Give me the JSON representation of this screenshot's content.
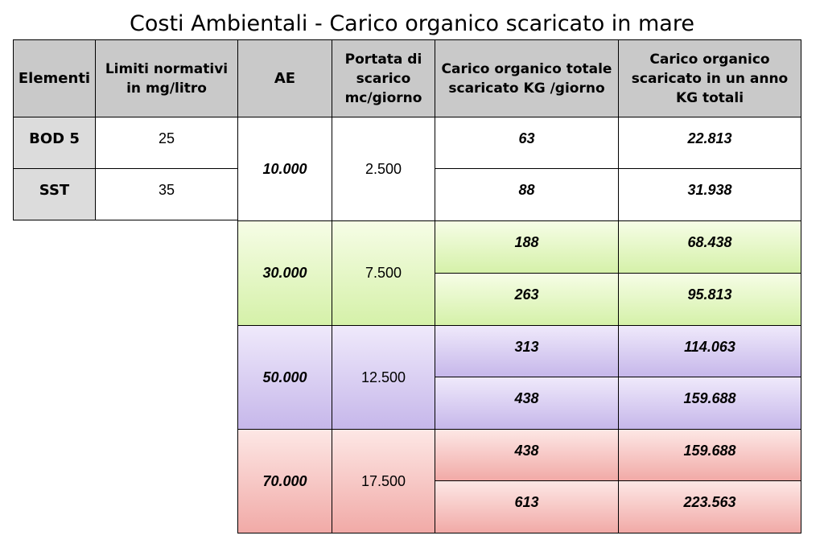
{
  "title": "Costi Ambientali - Carico organico scaricato in mare",
  "headers": {
    "elementi": "Elementi",
    "limiti": "Limiti normativi in mg/litro",
    "ae": "AE",
    "portata": "Portata di scarico mc/giorno",
    "carico_giorno": "Carico organico totale scaricato KG /giorno",
    "carico_anno": "Carico organico scaricato in un anno KG totali"
  },
  "elements": [
    {
      "name": "BOD 5",
      "limit": "25"
    },
    {
      "name": "SST",
      "limit": "35"
    }
  ],
  "groups": [
    {
      "ae": "10.000",
      "portata": "2.500",
      "rows": [
        {
          "kg_day": "63",
          "kg_year": "22.813"
        },
        {
          "kg_day": "88",
          "kg_year": "31.938"
        }
      ]
    },
    {
      "ae": "30.000",
      "portata": "7.500",
      "rows": [
        {
          "kg_day": "188",
          "kg_year": "68.438"
        },
        {
          "kg_day": "263",
          "kg_year": "95.813"
        }
      ]
    },
    {
      "ae": "50.000",
      "portata": "12.500",
      "rows": [
        {
          "kg_day": "313",
          "kg_year": "114.063"
        },
        {
          "kg_day": "438",
          "kg_year": "159.688"
        }
      ]
    },
    {
      "ae": "70.000",
      "portata": "17.500",
      "rows": [
        {
          "kg_day": "438",
          "kg_year": "159.688"
        },
        {
          "kg_day": "613",
          "kg_year": "223.563"
        }
      ]
    }
  ],
  "colors": {
    "header_bg": "#c9c9c9",
    "label_bg": "#dcdcdc",
    "group_10000": "#ffffff",
    "group_30000": "#d5f1a9",
    "group_50000": "#c6b7ea",
    "group_70000": "#f1aaa7"
  }
}
